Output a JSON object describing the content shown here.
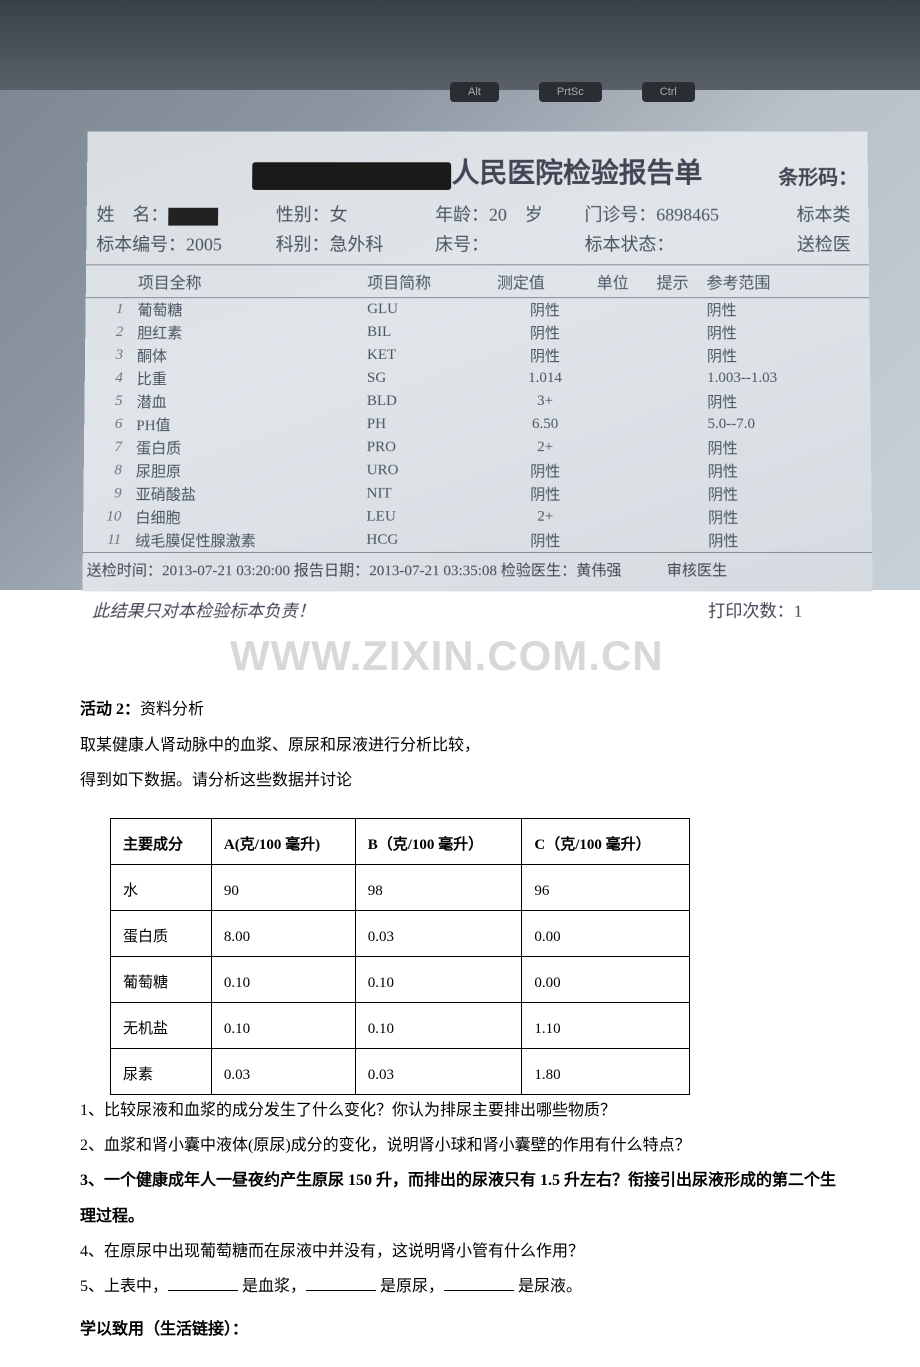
{
  "photo": {
    "keys": [
      "Alt",
      "PrtSc",
      "Ctrl"
    ],
    "title_suffix": "人民医院检验报告单",
    "barcode_label": "条形码：",
    "header": {
      "name_label": "姓　名：",
      "sample_no_label": "标本编号：",
      "sample_no": "2005",
      "gender_label": "性别：",
      "gender": "女",
      "dept_label": "科别：",
      "dept": "急外科",
      "age_label": "年龄：",
      "age": "20",
      "age_unit": "岁",
      "bed_label": "床号：",
      "outpatient_label": "门诊号：",
      "outpatient_no": "6898465",
      "sample_state_label": "标本状态：",
      "sample_type_label": "标本类",
      "send_doctor_label": "送检医"
    },
    "table": {
      "columns": [
        "项目全称",
        "项目简称",
        "测定值",
        "单位",
        "提示",
        "参考范围"
      ],
      "rows": [
        {
          "idx": "1",
          "name": "葡萄糖",
          "abbr": "GLU",
          "val": "阴性",
          "ref": "阴性"
        },
        {
          "idx": "2",
          "name": "胆红素",
          "abbr": "BIL",
          "val": "阴性",
          "ref": "阴性"
        },
        {
          "idx": "3",
          "name": "酮体",
          "abbr": "KET",
          "val": "阴性",
          "ref": "阴性"
        },
        {
          "idx": "4",
          "name": "比重",
          "abbr": "SG",
          "val": "1.014",
          "ref": "1.003--1.03"
        },
        {
          "idx": "5",
          "name": "潜血",
          "abbr": "BLD",
          "val": "3+",
          "ref": "阴性"
        },
        {
          "idx": "6",
          "name": "PH值",
          "abbr": "PH",
          "val": "6.50",
          "ref": "5.0--7.0"
        },
        {
          "idx": "7",
          "name": "蛋白质",
          "abbr": "PRO",
          "val": "2+",
          "ref": "阴性"
        },
        {
          "idx": "8",
          "name": "尿胆原",
          "abbr": "URO",
          "val": "阴性",
          "ref": "阴性"
        },
        {
          "idx": "9",
          "name": "亚硝酸盐",
          "abbr": "NIT",
          "val": "阴性",
          "ref": "阴性"
        },
        {
          "idx": "10",
          "name": "白细胞",
          "abbr": "LEU",
          "val": "2+",
          "ref": "阴性"
        },
        {
          "idx": "11",
          "name": "绒毛膜促性腺激素",
          "abbr": "HCG",
          "val": "阴性",
          "ref": "阴性"
        }
      ]
    },
    "footer": {
      "line1": "送检时间：2013-07-21 03:20:00 报告日期：2013-07-21 03:35:08 检验医生：黄伟强　　　审核医生",
      "line2": "此结果只对本检验标本负责！",
      "print_count": "打印次数：1"
    }
  },
  "watermark": "WWW.ZIXIN.COM.CN",
  "activity": {
    "label": "活动 2：",
    "label_text": "资料分析",
    "p1": "取某健康人肾动脉中的血浆、原尿和尿液进行分析比较，",
    "p2": "得到如下数据。请分析这些数据并讨论"
  },
  "data_table": {
    "columns": [
      "主要成分",
      "A(克/100 毫升)",
      "B（克/100 毫升）",
      "C（克/100 毫升）"
    ],
    "rows": [
      [
        "水",
        "90",
        "98",
        "96"
      ],
      [
        "蛋白质",
        "8.00",
        "0.03",
        "0.00"
      ],
      [
        "葡萄糖",
        "0.10",
        "0.10",
        "0.00"
      ],
      [
        "无机盐",
        "0.10",
        "0.10",
        "1.10"
      ],
      [
        "尿素",
        "0.03",
        "0.03",
        "1.80"
      ]
    ]
  },
  "questions": {
    "q1": "1、比较尿液和血浆的成分发生了什么变化？你认为排尿主要排出哪些物质？",
    "q2": "2、血浆和肾小囊中液体(原尿)成分的变化，说明肾小球和肾小囊壁的作用有什么特点？",
    "q3": "3、一个健康成年人一昼夜约产生原尿 150 升，而排出的尿液只有 1.5 升左右？衔接引出尿液形成的第二个生理过程。",
    "q4": "4、在原尿中出现葡萄糖而在尿液中并没有，这说明肾小管有什么作用？",
    "q5_pre": "5、上表中，",
    "q5_mid1": " 是血浆，",
    "q5_mid2": " 是原尿，",
    "q5_end": " 是尿液。"
  },
  "section2": "学以致用（生活链接）："
}
